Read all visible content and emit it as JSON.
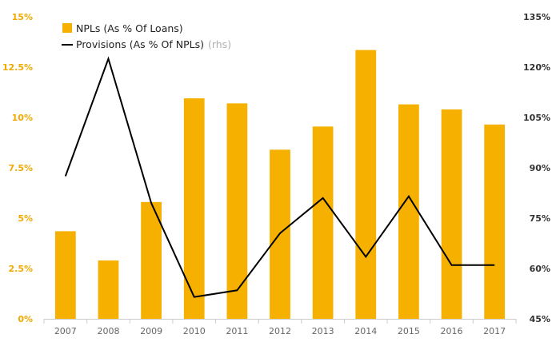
{
  "chart_data": {
    "type": "bar",
    "categories": [
      "2007",
      "2008",
      "2009",
      "2010",
      "2011",
      "2012",
      "2013",
      "2014",
      "2015",
      "2016",
      "2017"
    ],
    "series": [
      {
        "name": "NPLs (As % Of Loans)",
        "kind": "bar",
        "axis": "left",
        "color": "#f5b000",
        "values": [
          4.35,
          2.9,
          5.8,
          10.95,
          10.7,
          8.4,
          9.55,
          13.35,
          10.65,
          10.4,
          9.65
        ]
      },
      {
        "name": "Provisions (As % Of NPLs)",
        "kind": "line",
        "axis": "right",
        "color": "#000000",
        "values": [
          87.5,
          122.5,
          79.5,
          51.5,
          53.5,
          70.5,
          81.0,
          63.5,
          81.5,
          61.0,
          61.0
        ]
      }
    ],
    "left_axis": {
      "ylim": [
        0,
        15
      ],
      "ticks": [
        0,
        2.5,
        5,
        7.5,
        10,
        12.5,
        15
      ],
      "tick_labels": [
        "0%",
        "2.5%",
        "5%",
        "7.5%",
        "10%",
        "12.5%",
        "15%"
      ]
    },
    "right_axis": {
      "ylim": [
        45,
        135
      ],
      "ticks": [
        45,
        60,
        75,
        90,
        105,
        120,
        135
      ],
      "tick_labels": [
        "45%",
        "60%",
        "75%",
        "90%",
        "105%",
        "120%",
        "135%"
      ]
    },
    "legend": {
      "placement": "top-left",
      "bar_label": "NPLs (As % Of Loans)",
      "line_label": "Provisions (As % Of NPLs)",
      "line_suffix": "(rhs)"
    },
    "grid": false
  }
}
